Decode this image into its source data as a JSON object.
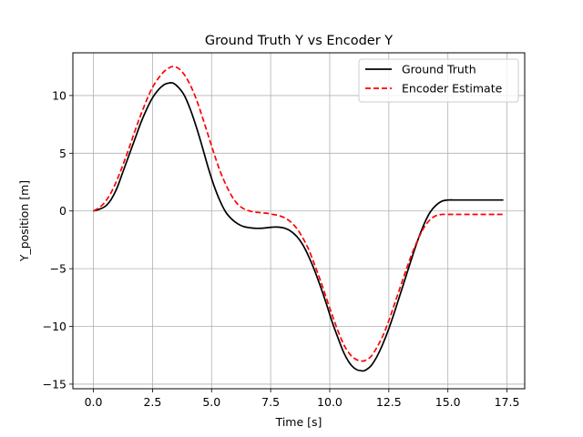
{
  "chart_data": {
    "type": "line",
    "title": "Ground Truth Y vs Encoder Y",
    "xlabel": "Time [s]",
    "ylabel": "Y_position [m]",
    "xlim": [
      -0.87,
      18.25
    ],
    "ylim": [
      -15.4,
      13.7
    ],
    "x_ticks": [
      0,
      2.5,
      5,
      7.5,
      10,
      12.5,
      15,
      17.5
    ],
    "x_tick_labels": [
      "0.0",
      "2.5",
      "5.0",
      "7.5",
      "10.0",
      "12.5",
      "15.0",
      "17.5"
    ],
    "y_ticks": [
      -15,
      -10,
      -5,
      0,
      5,
      10
    ],
    "y_tick_labels": [
      "−15",
      "−10",
      "−5",
      "0",
      "5",
      "10"
    ],
    "grid": true,
    "legend_position": "top-right",
    "series": [
      {
        "name": "Ground Truth",
        "color": "#000000",
        "style": "solid",
        "x": [
          0,
          0.25,
          0.5,
          0.75,
          1.0,
          1.25,
          1.5,
          1.75,
          2.0,
          2.25,
          2.5,
          2.75,
          3.0,
          3.25,
          3.4,
          3.6,
          3.85,
          4.1,
          4.35,
          4.6,
          4.85,
          5.1,
          5.35,
          5.6,
          5.85,
          6.1,
          6.35,
          6.6,
          6.85,
          7.1,
          7.35,
          7.6,
          7.85,
          8.1,
          8.35,
          8.6,
          8.85,
          9.1,
          9.35,
          9.6,
          9.85,
          10.1,
          10.35,
          10.6,
          10.85,
          11.1,
          11.35,
          11.5,
          11.75,
          12.0,
          12.25,
          12.5,
          12.75,
          13.0,
          13.25,
          13.5,
          13.75,
          14.0,
          14.25,
          14.5,
          14.75,
          15.0,
          15.25,
          15.5,
          16.0,
          16.5,
          17.0,
          17.35
        ],
        "values": [
          0,
          0.15,
          0.4,
          1.0,
          2.0,
          3.4,
          4.8,
          6.2,
          7.6,
          8.8,
          9.8,
          10.5,
          10.95,
          11.1,
          11.05,
          10.7,
          10.0,
          8.8,
          7.3,
          5.6,
          3.8,
          2.2,
          0.9,
          -0.1,
          -0.7,
          -1.1,
          -1.35,
          -1.45,
          -1.5,
          -1.5,
          -1.45,
          -1.4,
          -1.4,
          -1.5,
          -1.75,
          -2.2,
          -2.9,
          -3.9,
          -5.1,
          -6.5,
          -8.0,
          -9.6,
          -11.0,
          -12.3,
          -13.2,
          -13.7,
          -13.85,
          -13.8,
          -13.4,
          -12.6,
          -11.5,
          -10.2,
          -8.7,
          -7.1,
          -5.5,
          -3.9,
          -2.4,
          -1.1,
          -0.1,
          0.5,
          0.85,
          0.95,
          0.95,
          0.95,
          0.95,
          0.95,
          0.95,
          0.95
        ]
      },
      {
        "name": "Encoder Estimate",
        "color": "#ff0000",
        "style": "dashed",
        "x": [
          0,
          0.25,
          0.5,
          0.75,
          1.0,
          1.25,
          1.5,
          1.75,
          2.0,
          2.25,
          2.5,
          2.75,
          3.0,
          3.25,
          3.4,
          3.6,
          3.85,
          4.1,
          4.35,
          4.6,
          4.85,
          5.1,
          5.35,
          5.6,
          5.85,
          6.1,
          6.35,
          6.6,
          6.85,
          7.1,
          7.35,
          7.6,
          7.85,
          8.1,
          8.35,
          8.6,
          8.85,
          9.1,
          9.35,
          9.6,
          9.85,
          10.1,
          10.35,
          10.6,
          10.85,
          11.1,
          11.35,
          11.5,
          11.75,
          12.0,
          12.25,
          12.5,
          12.75,
          13.0,
          13.25,
          13.5,
          13.75,
          14.0,
          14.25,
          14.5,
          14.75,
          15.0,
          15.25,
          15.5,
          16.0,
          16.5,
          17.0,
          17.35
        ],
        "values": [
          0,
          0.3,
          0.8,
          1.6,
          2.7,
          4.0,
          5.4,
          6.9,
          8.3,
          9.6,
          10.7,
          11.5,
          12.1,
          12.45,
          12.5,
          12.35,
          11.8,
          10.9,
          9.7,
          8.2,
          6.6,
          5.0,
          3.5,
          2.3,
          1.3,
          0.6,
          0.2,
          0.0,
          -0.1,
          -0.15,
          -0.2,
          -0.3,
          -0.4,
          -0.6,
          -0.95,
          -1.5,
          -2.3,
          -3.3,
          -4.6,
          -6.0,
          -7.5,
          -9.0,
          -10.4,
          -11.6,
          -12.4,
          -12.85,
          -13.0,
          -12.95,
          -12.6,
          -11.8,
          -10.8,
          -9.5,
          -8.0,
          -6.5,
          -5.0,
          -3.6,
          -2.4,
          -1.4,
          -0.75,
          -0.4,
          -0.3,
          -0.3,
          -0.3,
          -0.3,
          -0.3,
          -0.3,
          -0.3,
          -0.3
        ]
      }
    ]
  }
}
